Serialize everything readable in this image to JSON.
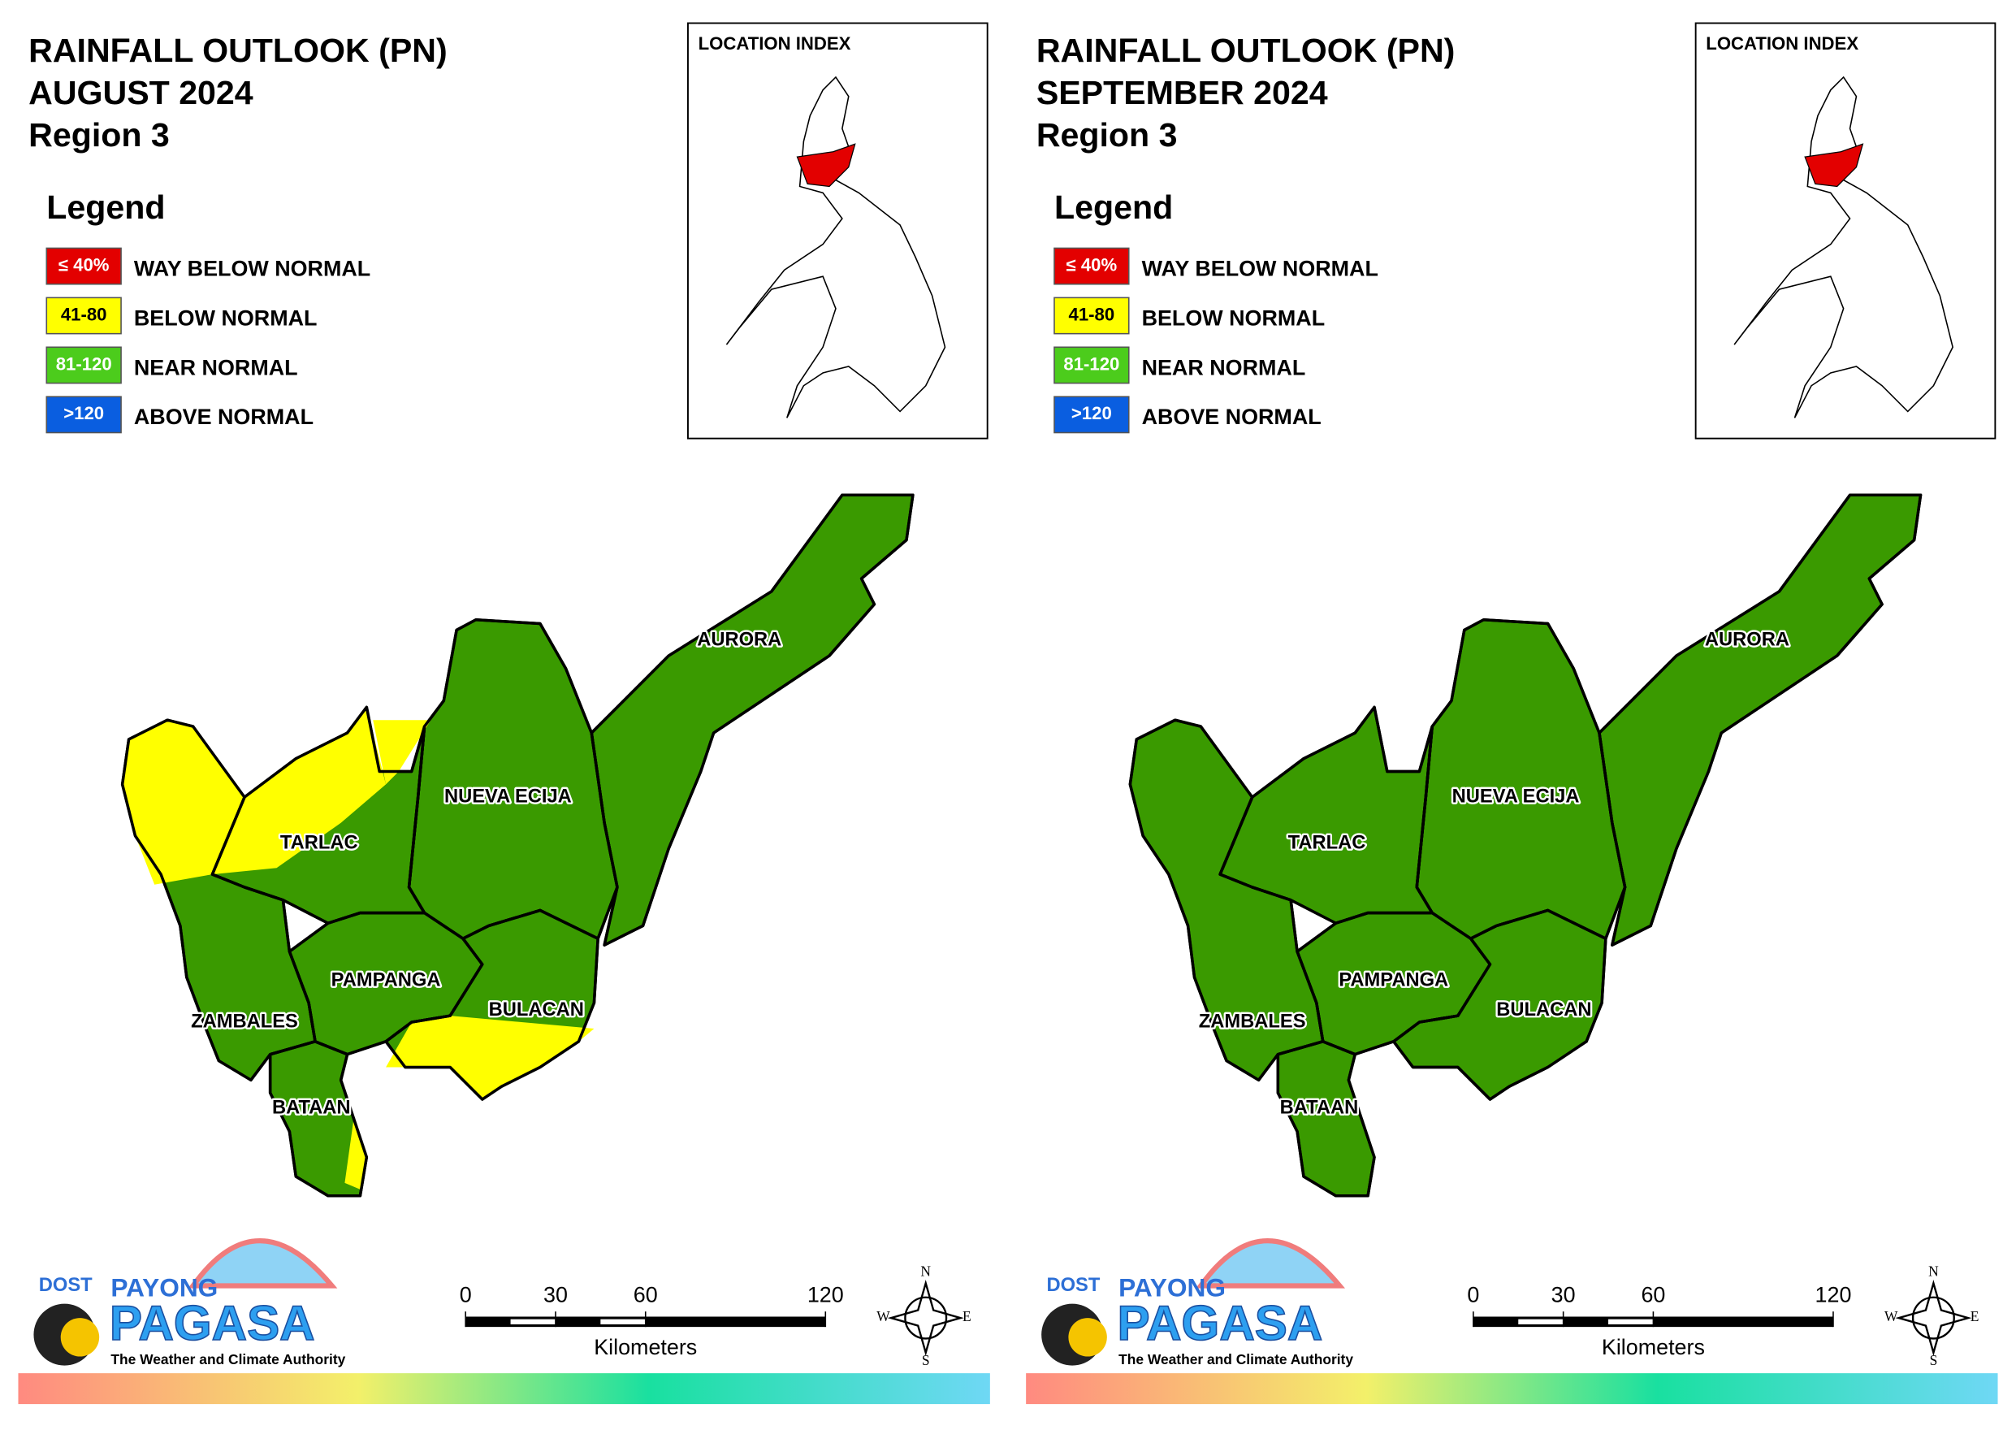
{
  "panels": [
    {
      "title": [
        "RAINFALL OUTLOOK (PN)",
        "AUGUST 2024",
        "Region 3"
      ],
      "legend_title": "Legend",
      "legend": [
        {
          "range": "≤ 40%",
          "label": "WAY BELOW NORMAL",
          "color": "#e30000"
        },
        {
          "range": "41-80",
          "label": "BELOW NORMAL",
          "color": "#ffff00"
        },
        {
          "range": "81-120",
          "label": "NEAR NORMAL",
          "color": "#4ccc1c"
        },
        {
          "range": ">120",
          "label": "ABOVE NORMAL",
          "color": "#0a5ee0"
        }
      ],
      "location_index": "LOCATION INDEX",
      "provinces": [
        "AURORA",
        "NUEVA ECIJA",
        "TARLAC",
        "PAMPANGA",
        "BULACAN",
        "ZAMBALES",
        "BATAAN"
      ],
      "scale": {
        "ticks": [
          0,
          30,
          60,
          120
        ],
        "unit": "Kilometers"
      },
      "compass": [
        "N",
        "E",
        "S",
        "W"
      ],
      "logo": {
        "agency": "DOST",
        "brand": "PAYONG",
        "name": "PAGASA",
        "tagline": "The Weather and Climate Authority"
      }
    },
    {
      "title": [
        "RAINFALL OUTLOOK (PN)",
        "SEPTEMBER 2024",
        "Region 3"
      ],
      "legend_title": "Legend",
      "legend": [
        {
          "range": "≤ 40%",
          "label": "WAY BELOW NORMAL",
          "color": "#e30000"
        },
        {
          "range": "41-80",
          "label": "BELOW NORMAL",
          "color": "#ffff00"
        },
        {
          "range": "81-120",
          "label": "NEAR NORMAL",
          "color": "#4ccc1c"
        },
        {
          "range": ">120",
          "label": "ABOVE NORMAL",
          "color": "#0a5ee0"
        }
      ],
      "location_index": "LOCATION INDEX",
      "provinces": [
        "AURORA",
        "NUEVA ECIJA",
        "TARLAC",
        "PAMPANGA",
        "BULACAN",
        "ZAMBALES",
        "BATAAN"
      ],
      "scale": {
        "ticks": [
          0,
          30,
          60,
          120
        ],
        "unit": "Kilometers"
      },
      "compass": [
        "N",
        "E",
        "S",
        "W"
      ],
      "logo": {
        "agency": "DOST",
        "brand": "PAYONG",
        "name": "PAGASA",
        "tagline": "The Weather and Climate Authority"
      }
    }
  ]
}
